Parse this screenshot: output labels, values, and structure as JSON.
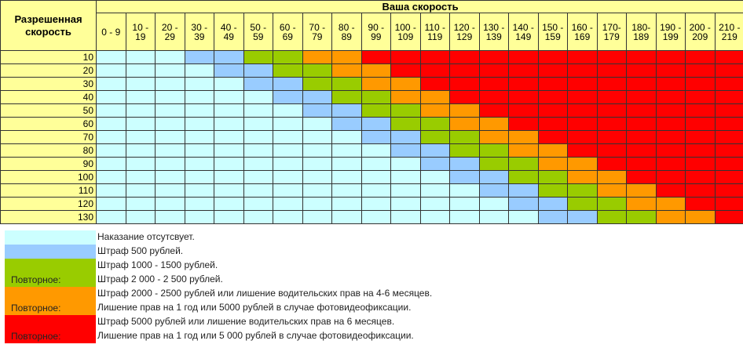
{
  "header": {
    "corner_title": "Разрешенная скорость",
    "speed_title": "Ваша скорость",
    "speed_ranges": [
      [
        "0 - 9",
        ""
      ],
      [
        "10 -",
        "19"
      ],
      [
        "20 -",
        "29"
      ],
      [
        "30 -",
        "39"
      ],
      [
        "40 -",
        "49"
      ],
      [
        "50 -",
        "59"
      ],
      [
        "60 -",
        "69"
      ],
      [
        "70 -",
        "79"
      ],
      [
        "80 -",
        "89"
      ],
      [
        "90 -",
        "99"
      ],
      [
        "100 -",
        "109"
      ],
      [
        "110 -",
        "119"
      ],
      [
        "120 -",
        "129"
      ],
      [
        "130 -",
        "139"
      ],
      [
        "140 -",
        "149"
      ],
      [
        "150 -",
        "159"
      ],
      [
        "160 -",
        "169"
      ],
      [
        "170-",
        "179"
      ],
      [
        "180-",
        "189"
      ],
      [
        "190 -",
        "199"
      ],
      [
        "200 -",
        "209"
      ],
      [
        "210 -",
        "219"
      ]
    ]
  },
  "rows": [
    {
      "limit": "10",
      "cells": [
        0,
        0,
        0,
        1,
        1,
        2,
        2,
        3,
        3,
        4,
        4,
        4,
        4,
        4,
        4,
        4,
        4,
        4,
        4,
        4,
        4,
        4
      ]
    },
    {
      "limit": "20",
      "cells": [
        0,
        0,
        0,
        0,
        1,
        1,
        2,
        2,
        3,
        3,
        4,
        4,
        4,
        4,
        4,
        4,
        4,
        4,
        4,
        4,
        4,
        4
      ]
    },
    {
      "limit": "30",
      "cells": [
        0,
        0,
        0,
        0,
        0,
        1,
        1,
        2,
        2,
        3,
        3,
        4,
        4,
        4,
        4,
        4,
        4,
        4,
        4,
        4,
        4,
        4
      ]
    },
    {
      "limit": "40",
      "cells": [
        0,
        0,
        0,
        0,
        0,
        0,
        1,
        1,
        2,
        2,
        3,
        3,
        4,
        4,
        4,
        4,
        4,
        4,
        4,
        4,
        4,
        4
      ]
    },
    {
      "limit": "50",
      "cells": [
        0,
        0,
        0,
        0,
        0,
        0,
        0,
        1,
        1,
        2,
        2,
        3,
        3,
        4,
        4,
        4,
        4,
        4,
        4,
        4,
        4,
        4
      ]
    },
    {
      "limit": "60",
      "cells": [
        0,
        0,
        0,
        0,
        0,
        0,
        0,
        0,
        1,
        1,
        2,
        2,
        3,
        3,
        4,
        4,
        4,
        4,
        4,
        4,
        4,
        4
      ]
    },
    {
      "limit": "70",
      "cells": [
        0,
        0,
        0,
        0,
        0,
        0,
        0,
        0,
        0,
        1,
        1,
        2,
        2,
        3,
        3,
        4,
        4,
        4,
        4,
        4,
        4,
        4
      ]
    },
    {
      "limit": "80",
      "cells": [
        0,
        0,
        0,
        0,
        0,
        0,
        0,
        0,
        0,
        0,
        1,
        1,
        2,
        2,
        3,
        3,
        4,
        4,
        4,
        4,
        4,
        4
      ]
    },
    {
      "limit": "90",
      "cells": [
        0,
        0,
        0,
        0,
        0,
        0,
        0,
        0,
        0,
        0,
        0,
        1,
        1,
        2,
        2,
        3,
        3,
        4,
        4,
        4,
        4,
        4
      ]
    },
    {
      "limit": "100",
      "cells": [
        0,
        0,
        0,
        0,
        0,
        0,
        0,
        0,
        0,
        0,
        0,
        0,
        1,
        1,
        2,
        2,
        3,
        3,
        4,
        4,
        4,
        4
      ]
    },
    {
      "limit": "110",
      "cells": [
        0,
        0,
        0,
        0,
        0,
        0,
        0,
        0,
        0,
        0,
        0,
        0,
        0,
        1,
        1,
        2,
        2,
        3,
        3,
        4,
        4,
        4
      ]
    },
    {
      "limit": "120",
      "cells": [
        0,
        0,
        0,
        0,
        0,
        0,
        0,
        0,
        0,
        0,
        0,
        0,
        0,
        0,
        1,
        1,
        2,
        2,
        3,
        3,
        4,
        4
      ]
    },
    {
      "limit": "130",
      "cells": [
        0,
        0,
        0,
        0,
        0,
        0,
        0,
        0,
        0,
        0,
        0,
        0,
        0,
        0,
        0,
        1,
        1,
        2,
        2,
        3,
        3,
        4
      ]
    }
  ],
  "colors": {
    "header_bg": "#ffff99",
    "none": "#ccffff",
    "fine_500": "#99ccff",
    "fine_1000": "#99cc00",
    "fine_2000": "#ff9900",
    "fine_5000": "#ff0000"
  },
  "legend": {
    "repeat_label": "Повторное:",
    "none": "Наказание отсутсвует.",
    "fine_500": "Штраф 500 рублей.",
    "fine_1000": "Штраф 1000 - 1500 рублей.",
    "fine_1000_repeat": "Штраф 2 000 - 2 500 рублей.",
    "fine_2000": "Штраф 2000 - 2500 рублей или лишение водительских прав на 4-6 месяцев.",
    "fine_2000_repeat": "Лишение прав на 1 год или 5000 рублей в случае фотовидеофиксации.",
    "fine_5000": "Штраф 5000 рублей или лишение водительских прав на 6 месяцев.",
    "fine_5000_repeat": "Лишение прав на 1 год или 5 000 рублей в случае фотовидеофиксации."
  }
}
